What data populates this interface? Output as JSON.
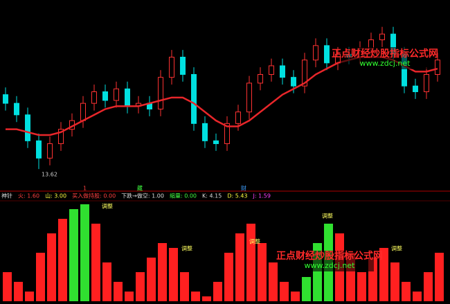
{
  "chart_data": [
    {
      "type": "candlestick",
      "open": [
        16.2,
        15.9,
        15.5,
        14.6,
        14.0,
        14.5,
        15.0,
        15.3,
        15.9,
        16.3,
        16.0,
        16.4,
        15.8,
        15.9,
        15.7,
        16.8,
        17.5,
        16.9,
        15.2,
        14.6,
        14.5,
        15.2,
        15.6,
        16.6,
        16.9,
        17.2,
        16.8,
        16.5,
        17.4,
        17.9,
        17.3,
        17.6,
        17.5,
        17.8,
        18.1,
        18.3,
        17.6,
        16.5,
        16.3,
        16.9
      ],
      "high": [
        16.45,
        16.15,
        15.75,
        14.85,
        14.75,
        15.25,
        15.55,
        16.15,
        16.55,
        16.55,
        16.65,
        16.65,
        16.15,
        16.15,
        17.05,
        17.75,
        17.75,
        17.15,
        15.45,
        14.85,
        15.45,
        15.85,
        16.85,
        17.15,
        17.45,
        17.45,
        17.05,
        17.65,
        18.15,
        18.15,
        17.85,
        17.85,
        18.05,
        18.35,
        18.55,
        18.55,
        17.85,
        16.75,
        17.15,
        17.65
      ],
      "low": [
        15.65,
        15.25,
        14.35,
        13.62,
        13.75,
        14.25,
        14.75,
        15.05,
        15.65,
        15.75,
        15.75,
        15.55,
        15.55,
        15.45,
        15.45,
        16.55,
        16.65,
        14.95,
        14.35,
        14.25,
        14.25,
        14.95,
        15.35,
        16.35,
        16.65,
        16.55,
        16.25,
        16.25,
        17.15,
        17.05,
        17.05,
        17.25,
        17.25,
        17.55,
        17.85,
        17.35,
        16.25,
        16.05,
        16.05,
        16.65
      ],
      "close": [
        15.9,
        15.5,
        14.6,
        14.0,
        14.5,
        15.0,
        15.3,
        15.9,
        16.3,
        16.0,
        16.4,
        15.8,
        15.9,
        15.7,
        16.8,
        17.5,
        16.9,
        15.2,
        14.6,
        14.5,
        15.2,
        15.6,
        16.6,
        16.9,
        17.2,
        16.8,
        16.5,
        17.4,
        17.9,
        17.3,
        17.6,
        17.5,
        17.8,
        18.1,
        18.3,
        17.6,
        16.5,
        16.3,
        16.9,
        17.4
      ],
      "series": [
        {
          "color": "#e8262a",
          "values": [
            15.0,
            15.0,
            14.9,
            14.8,
            14.8,
            14.9,
            15.1,
            15.3,
            15.5,
            15.7,
            15.8,
            15.8,
            15.8,
            15.9,
            16.0,
            16.1,
            16.1,
            15.9,
            15.6,
            15.3,
            15.1,
            15.1,
            15.3,
            15.6,
            15.9,
            16.2,
            16.4,
            16.6,
            16.9,
            17.1,
            17.3,
            17.4,
            17.5,
            17.5,
            17.5,
            17.4,
            17.2,
            17.0,
            17.0,
            17.1
          ]
        }
      ],
      "up_color": "#ff3232",
      "down_color": "#00e0e0",
      "ylim": [
        13,
        19
      ],
      "low_label": "13.62"
    },
    {
      "type": "bar",
      "values": [
        30,
        20,
        10,
        50,
        70,
        85,
        95,
        100,
        80,
        40,
        20,
        10,
        30,
        45,
        60,
        55,
        30,
        10,
        5,
        20,
        50,
        70,
        80,
        60,
        40,
        20,
        10,
        25,
        60,
        80,
        70,
        50,
        30,
        45,
        55,
        40,
        20,
        10,
        30,
        50
      ],
      "colors": [
        "#ff2020",
        "#ff2020",
        "#ff2020",
        "#ff2020",
        "#ff2020",
        "#ff2020",
        "#30e030",
        "#30e030",
        "#ff2020",
        "#ff2020",
        "#ff2020",
        "#ff2020",
        "#ff2020",
        "#ff2020",
        "#ff2020",
        "#ff2020",
        "#ff2020",
        "#ff2020",
        "#ff2020",
        "#ff2020",
        "#ff2020",
        "#ff2020",
        "#ff2020",
        "#ff2020",
        "#ff2020",
        "#ff2020",
        "#ff2020",
        "#30e030",
        "#30e030",
        "#30e030",
        "#ff2020",
        "#ff2020",
        "#ff2020",
        "#ff2020",
        "#ff2020",
        "#ff2020",
        "#ff2020",
        "#ff2020",
        "#ff2020",
        "#ff2020"
      ],
      "ylim": [
        0,
        100
      ]
    }
  ],
  "markers": [
    "1",
    "藏",
    "财"
  ],
  "indicator_bar": [
    "神针",
    "火: 1.60",
    "山: 3.00",
    "买入做持股: 0.00",
    "下跌→做空: 1.00",
    "缩量: 0.00",
    "K: 4.15",
    "D: 5.43",
    "J: 1.59"
  ],
  "annotations": [
    "调整",
    "调整",
    "调整",
    "调整",
    "调整"
  ],
  "watermark": {
    "title": "正点财经炒股指标公式网",
    "url": "www.zdcj.net"
  }
}
